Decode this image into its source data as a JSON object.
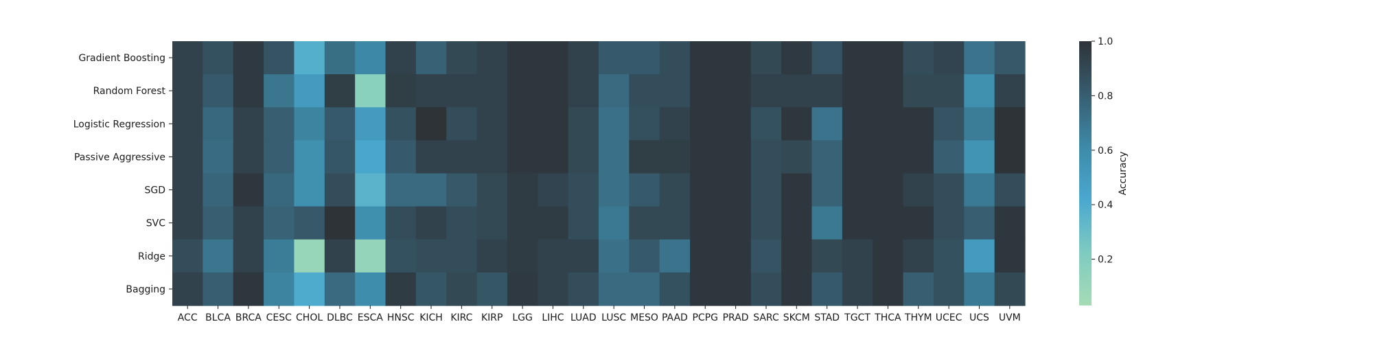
{
  "chart_data": {
    "type": "heatmap",
    "title": "",
    "xlabel": "",
    "ylabel": "",
    "columns": [
      "ACC",
      "BLCA",
      "BRCA",
      "CESC",
      "CHOL",
      "DLBC",
      "ESCA",
      "HNSC",
      "KICH",
      "KIRC",
      "KIRP",
      "LGG",
      "LIHC",
      "LUAD",
      "LUSC",
      "MESO",
      "PAAD",
      "PCPG",
      "PRAD",
      "SARC",
      "SKCM",
      "STAD",
      "TGCT",
      "THCA",
      "THYM",
      "UCEC",
      "UCS",
      "UVM"
    ],
    "rows": [
      "Gradient Boosting",
      "Random Forest",
      "Logistic Regression",
      "Passive Aggressive",
      "SGD",
      "SVC",
      "Ridge",
      "Bagging"
    ],
    "values": [
      [
        0.93,
        0.86,
        0.97,
        0.85,
        0.38,
        0.73,
        0.62,
        0.93,
        0.79,
        0.9,
        0.93,
        0.98,
        0.98,
        0.93,
        0.82,
        0.82,
        0.88,
        0.98,
        0.98,
        0.9,
        0.97,
        0.85,
        0.98,
        0.98,
        0.88,
        0.92,
        0.71,
        0.83
      ],
      [
        0.93,
        0.82,
        0.97,
        0.7,
        0.5,
        0.95,
        0.17,
        0.95,
        0.93,
        0.93,
        0.93,
        0.98,
        0.98,
        0.93,
        0.75,
        0.88,
        0.88,
        0.98,
        0.98,
        0.93,
        0.93,
        0.93,
        0.98,
        0.98,
        0.9,
        0.9,
        0.57,
        0.93
      ],
      [
        0.93,
        0.76,
        0.93,
        0.8,
        0.64,
        0.82,
        0.5,
        0.86,
        1.0,
        0.88,
        0.93,
        0.98,
        0.98,
        0.9,
        0.72,
        0.87,
        0.93,
        0.98,
        0.98,
        0.86,
        0.98,
        0.71,
        0.98,
        0.98,
        0.98,
        0.85,
        0.67,
        1.0
      ],
      [
        0.93,
        0.74,
        0.93,
        0.8,
        0.57,
        0.84,
        0.43,
        0.82,
        0.93,
        0.93,
        0.93,
        0.98,
        0.98,
        0.9,
        0.72,
        0.95,
        0.95,
        0.98,
        0.98,
        0.88,
        0.9,
        0.78,
        0.98,
        0.98,
        0.98,
        0.8,
        0.55,
        1.0
      ],
      [
        0.93,
        0.77,
        0.98,
        0.76,
        0.57,
        0.88,
        0.36,
        0.75,
        0.75,
        0.83,
        0.9,
        0.96,
        0.92,
        0.88,
        0.72,
        0.82,
        0.9,
        0.98,
        0.98,
        0.88,
        0.98,
        0.78,
        0.98,
        0.98,
        0.93,
        0.88,
        0.68,
        0.88
      ],
      [
        0.93,
        0.8,
        0.93,
        0.78,
        0.83,
        1.0,
        0.58,
        0.88,
        0.93,
        0.88,
        0.9,
        0.96,
        0.96,
        0.88,
        0.69,
        0.9,
        0.9,
        0.98,
        0.98,
        0.88,
        0.98,
        0.69,
        0.98,
        0.98,
        0.98,
        0.88,
        0.8,
        0.98
      ],
      [
        0.88,
        0.7,
        0.93,
        0.67,
        0.1,
        0.93,
        0.12,
        0.86,
        0.88,
        0.88,
        0.93,
        0.96,
        0.93,
        0.93,
        0.72,
        0.82,
        0.71,
        0.98,
        0.98,
        0.85,
        0.98,
        0.9,
        0.93,
        0.98,
        0.93,
        0.86,
        0.5,
        0.98
      ],
      [
        0.93,
        0.8,
        0.98,
        0.64,
        0.4,
        0.75,
        0.59,
        0.96,
        0.84,
        0.9,
        0.84,
        0.97,
        0.93,
        0.88,
        0.75,
        0.75,
        0.86,
        0.98,
        0.98,
        0.88,
        0.98,
        0.82,
        0.93,
        0.98,
        0.8,
        0.86,
        0.68,
        0.9
      ]
    ],
    "colorbar": {
      "label": "Accuracy",
      "ticks": [
        0.2,
        0.4,
        0.6,
        0.8,
        1.0
      ],
      "tick_labels": [
        "0.2",
        "0.4",
        "0.6",
        "0.8",
        "1.0"
      ],
      "vmin": 0.03,
      "vmax": 1.0
    },
    "colormap": [
      "#a6dcb6",
      "#7ecbc0",
      "#4aa8cf",
      "#3d8aa8",
      "#375d6f",
      "#2e3338"
    ],
    "grid": false
  }
}
